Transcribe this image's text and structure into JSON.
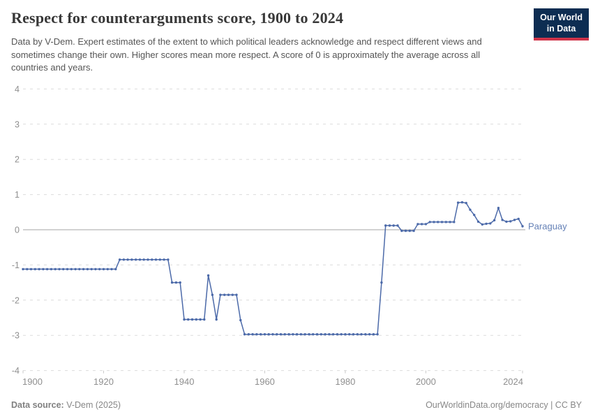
{
  "header": {
    "title": "Respect for counterarguments score, 1900 to 2024",
    "subtitle": "Data by V-Dem. Expert estimates of the extent to which political leaders acknowledge and respect different views and sometimes change their own. Higher scores mean more respect. A score of 0 is approximately the average across all countries and years."
  },
  "logo": {
    "line1": "Our World",
    "line2": "in Data",
    "bg_color": "#0D2D52",
    "bar_color": "#CF3349"
  },
  "footer": {
    "source_label": "Data source:",
    "source_value": " V-Dem (2025)",
    "attribution": "OurWorldinData.org/democracy | CC BY"
  },
  "chart_data": {
    "type": "line",
    "title": "Respect for counterarguments score, 1900 to 2024",
    "entity": "Paraguay",
    "xlabel": "",
    "ylabel": "",
    "ylim": [
      -4,
      4
    ],
    "ytick_step": 1,
    "xticks": [
      1900,
      1920,
      1940,
      1960,
      1980,
      2000,
      2024
    ],
    "grid": "horizontal-dashed",
    "zero_line": true,
    "legend_position": "entity-label-at-line-end",
    "line_color": "#4C6AA9",
    "label_color": "#6480B6",
    "x": [
      1900,
      1901,
      1902,
      1903,
      1904,
      1905,
      1906,
      1907,
      1908,
      1909,
      1910,
      1911,
      1912,
      1913,
      1914,
      1915,
      1916,
      1917,
      1918,
      1919,
      1920,
      1921,
      1922,
      1923,
      1924,
      1925,
      1926,
      1927,
      1928,
      1929,
      1930,
      1931,
      1932,
      1933,
      1934,
      1935,
      1936,
      1937,
      1938,
      1939,
      1940,
      1941,
      1942,
      1943,
      1944,
      1945,
      1946,
      1947,
      1948,
      1949,
      1950,
      1951,
      1952,
      1953,
      1954,
      1955,
      1956,
      1957,
      1958,
      1959,
      1960,
      1961,
      1962,
      1963,
      1964,
      1965,
      1966,
      1967,
      1968,
      1969,
      1970,
      1971,
      1972,
      1973,
      1974,
      1975,
      1976,
      1977,
      1978,
      1979,
      1980,
      1981,
      1982,
      1983,
      1984,
      1985,
      1986,
      1987,
      1988,
      1989,
      1990,
      1991,
      1992,
      1993,
      1994,
      1995,
      1996,
      1997,
      1998,
      1999,
      2000,
      2001,
      2002,
      2003,
      2004,
      2005,
      2006,
      2007,
      2008,
      2009,
      2010,
      2011,
      2012,
      2013,
      2014,
      2015,
      2016,
      2017,
      2018,
      2019,
      2020,
      2021,
      2022,
      2023,
      2024
    ],
    "values": [
      -1.12,
      -1.12,
      -1.12,
      -1.12,
      -1.12,
      -1.12,
      -1.12,
      -1.12,
      -1.12,
      -1.12,
      -1.12,
      -1.12,
      -1.12,
      -1.12,
      -1.12,
      -1.12,
      -1.12,
      -1.12,
      -1.12,
      -1.12,
      -1.12,
      -1.12,
      -1.12,
      -1.12,
      -0.85,
      -0.85,
      -0.85,
      -0.85,
      -0.85,
      -0.85,
      -0.85,
      -0.85,
      -0.85,
      -0.85,
      -0.85,
      -0.85,
      -0.85,
      -1.5,
      -1.5,
      -1.5,
      -2.55,
      -2.55,
      -2.55,
      -2.55,
      -2.55,
      -2.55,
      -1.3,
      -1.85,
      -2.55,
      -1.85,
      -1.85,
      -1.85,
      -1.85,
      -1.85,
      -2.57,
      -2.97,
      -2.97,
      -2.97,
      -2.97,
      -2.97,
      -2.97,
      -2.97,
      -2.97,
      -2.97,
      -2.97,
      -2.97,
      -2.97,
      -2.97,
      -2.97,
      -2.97,
      -2.97,
      -2.97,
      -2.97,
      -2.97,
      -2.97,
      -2.97,
      -2.97,
      -2.97,
      -2.97,
      -2.97,
      -2.97,
      -2.97,
      -2.97,
      -2.97,
      -2.97,
      -2.97,
      -2.97,
      -2.97,
      -2.97,
      -1.5,
      0.12,
      0.12,
      0.12,
      0.12,
      -0.03,
      -0.03,
      -0.03,
      -0.03,
      0.16,
      0.16,
      0.16,
      0.22,
      0.22,
      0.22,
      0.22,
      0.22,
      0.22,
      0.22,
      0.77,
      0.78,
      0.76,
      0.57,
      0.42,
      0.23,
      0.15,
      0.17,
      0.18,
      0.27,
      0.62,
      0.28,
      0.23,
      0.24,
      0.28,
      0.31,
      0.1
    ]
  }
}
